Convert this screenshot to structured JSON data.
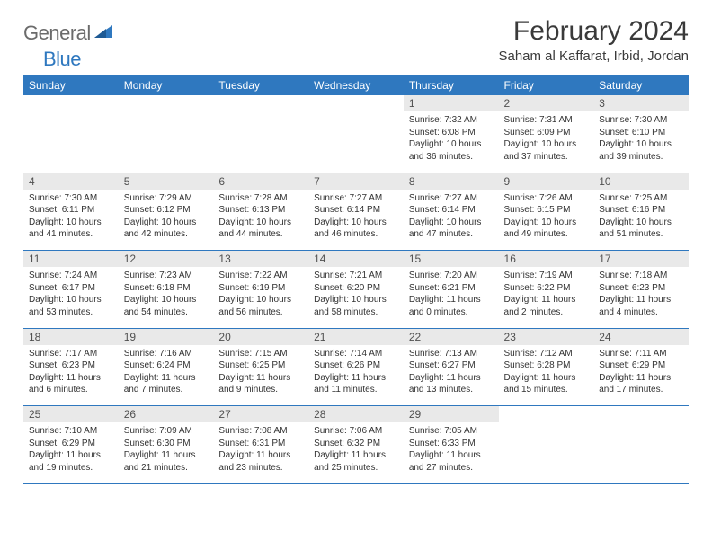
{
  "brand": {
    "text1": "General",
    "text2": "Blue"
  },
  "title": "February 2024",
  "location": "Saham al Kaffarat, Irbid, Jordan",
  "colors": {
    "header_bg": "#2f78bf",
    "header_text": "#ffffff",
    "daynum_bg": "#e9e9e9",
    "rule": "#2f78bf",
    "body_text": "#333333"
  },
  "weekdays": [
    "Sunday",
    "Monday",
    "Tuesday",
    "Wednesday",
    "Thursday",
    "Friday",
    "Saturday"
  ],
  "weeks": [
    [
      null,
      null,
      null,
      null,
      {
        "n": "1",
        "sr": "7:32 AM",
        "ss": "6:08 PM",
        "dl": "10 hours and 36 minutes."
      },
      {
        "n": "2",
        "sr": "7:31 AM",
        "ss": "6:09 PM",
        "dl": "10 hours and 37 minutes."
      },
      {
        "n": "3",
        "sr": "7:30 AM",
        "ss": "6:10 PM",
        "dl": "10 hours and 39 minutes."
      }
    ],
    [
      {
        "n": "4",
        "sr": "7:30 AM",
        "ss": "6:11 PM",
        "dl": "10 hours and 41 minutes."
      },
      {
        "n": "5",
        "sr": "7:29 AM",
        "ss": "6:12 PM",
        "dl": "10 hours and 42 minutes."
      },
      {
        "n": "6",
        "sr": "7:28 AM",
        "ss": "6:13 PM",
        "dl": "10 hours and 44 minutes."
      },
      {
        "n": "7",
        "sr": "7:27 AM",
        "ss": "6:14 PM",
        "dl": "10 hours and 46 minutes."
      },
      {
        "n": "8",
        "sr": "7:27 AM",
        "ss": "6:14 PM",
        "dl": "10 hours and 47 minutes."
      },
      {
        "n": "9",
        "sr": "7:26 AM",
        "ss": "6:15 PM",
        "dl": "10 hours and 49 minutes."
      },
      {
        "n": "10",
        "sr": "7:25 AM",
        "ss": "6:16 PM",
        "dl": "10 hours and 51 minutes."
      }
    ],
    [
      {
        "n": "11",
        "sr": "7:24 AM",
        "ss": "6:17 PM",
        "dl": "10 hours and 53 minutes."
      },
      {
        "n": "12",
        "sr": "7:23 AM",
        "ss": "6:18 PM",
        "dl": "10 hours and 54 minutes."
      },
      {
        "n": "13",
        "sr": "7:22 AM",
        "ss": "6:19 PM",
        "dl": "10 hours and 56 minutes."
      },
      {
        "n": "14",
        "sr": "7:21 AM",
        "ss": "6:20 PM",
        "dl": "10 hours and 58 minutes."
      },
      {
        "n": "15",
        "sr": "7:20 AM",
        "ss": "6:21 PM",
        "dl": "11 hours and 0 minutes."
      },
      {
        "n": "16",
        "sr": "7:19 AM",
        "ss": "6:22 PM",
        "dl": "11 hours and 2 minutes."
      },
      {
        "n": "17",
        "sr": "7:18 AM",
        "ss": "6:23 PM",
        "dl": "11 hours and 4 minutes."
      }
    ],
    [
      {
        "n": "18",
        "sr": "7:17 AM",
        "ss": "6:23 PM",
        "dl": "11 hours and 6 minutes."
      },
      {
        "n": "19",
        "sr": "7:16 AM",
        "ss": "6:24 PM",
        "dl": "11 hours and 7 minutes."
      },
      {
        "n": "20",
        "sr": "7:15 AM",
        "ss": "6:25 PM",
        "dl": "11 hours and 9 minutes."
      },
      {
        "n": "21",
        "sr": "7:14 AM",
        "ss": "6:26 PM",
        "dl": "11 hours and 11 minutes."
      },
      {
        "n": "22",
        "sr": "7:13 AM",
        "ss": "6:27 PM",
        "dl": "11 hours and 13 minutes."
      },
      {
        "n": "23",
        "sr": "7:12 AM",
        "ss": "6:28 PM",
        "dl": "11 hours and 15 minutes."
      },
      {
        "n": "24",
        "sr": "7:11 AM",
        "ss": "6:29 PM",
        "dl": "11 hours and 17 minutes."
      }
    ],
    [
      {
        "n": "25",
        "sr": "7:10 AM",
        "ss": "6:29 PM",
        "dl": "11 hours and 19 minutes."
      },
      {
        "n": "26",
        "sr": "7:09 AM",
        "ss": "6:30 PM",
        "dl": "11 hours and 21 minutes."
      },
      {
        "n": "27",
        "sr": "7:08 AM",
        "ss": "6:31 PM",
        "dl": "11 hours and 23 minutes."
      },
      {
        "n": "28",
        "sr": "7:06 AM",
        "ss": "6:32 PM",
        "dl": "11 hours and 25 minutes."
      },
      {
        "n": "29",
        "sr": "7:05 AM",
        "ss": "6:33 PM",
        "dl": "11 hours and 27 minutes."
      },
      null,
      null
    ]
  ],
  "labels": {
    "sunrise": "Sunrise: ",
    "sunset": "Sunset: ",
    "daylight": "Daylight: "
  }
}
